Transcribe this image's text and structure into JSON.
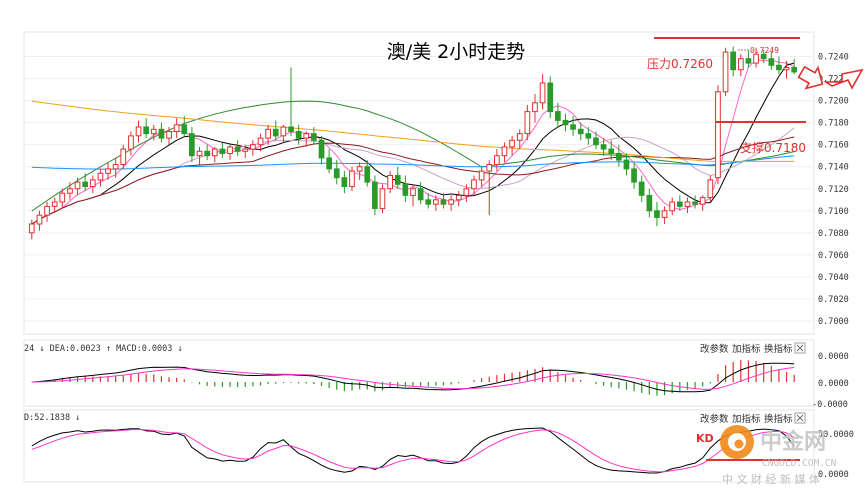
{
  "chart_data": {
    "type": "candlestick",
    "title": "澳/美 2小时走势",
    "ylim": [
      0.699,
      0.7255
    ],
    "y_ticks": [
      "0.7240",
      "0.7220",
      "0.7200",
      "0.7180",
      "0.7160",
      "0.7140",
      "0.7120",
      "0.7100",
      "0.7080",
      "0.7060",
      "0.7040",
      "0.7020",
      "0.7000"
    ],
    "annotations": {
      "resistance_label": "压力0.7260",
      "support_label": "支撑0.7180",
      "peak_label": "0.7249"
    },
    "candles": [
      {
        "o": 0.708,
        "h": 0.7092,
        "l": 0.7074,
        "c": 0.7088
      },
      {
        "o": 0.7088,
        "h": 0.71,
        "l": 0.7082,
        "c": 0.7096
      },
      {
        "o": 0.7096,
        "h": 0.7108,
        "l": 0.709,
        "c": 0.7104
      },
      {
        "o": 0.7104,
        "h": 0.7112,
        "l": 0.7098,
        "c": 0.7108
      },
      {
        "o": 0.7108,
        "h": 0.712,
        "l": 0.7102,
        "c": 0.7116
      },
      {
        "o": 0.7116,
        "h": 0.7126,
        "l": 0.711,
        "c": 0.712
      },
      {
        "o": 0.712,
        "h": 0.713,
        "l": 0.7114,
        "c": 0.7126
      },
      {
        "o": 0.7126,
        "h": 0.7134,
        "l": 0.7118,
        "c": 0.7122
      },
      {
        "o": 0.7122,
        "h": 0.7132,
        "l": 0.7116,
        "c": 0.7128
      },
      {
        "o": 0.7128,
        "h": 0.7138,
        "l": 0.7122,
        "c": 0.7134
      },
      {
        "o": 0.7134,
        "h": 0.7144,
        "l": 0.7128,
        "c": 0.7138
      },
      {
        "o": 0.7138,
        "h": 0.7148,
        "l": 0.713,
        "c": 0.7142
      },
      {
        "o": 0.7142,
        "h": 0.716,
        "l": 0.7138,
        "c": 0.7156
      },
      {
        "o": 0.7156,
        "h": 0.7172,
        "l": 0.715,
        "c": 0.7168
      },
      {
        "o": 0.7168,
        "h": 0.7182,
        "l": 0.7162,
        "c": 0.7176
      },
      {
        "o": 0.7176,
        "h": 0.7184,
        "l": 0.7166,
        "c": 0.717
      },
      {
        "o": 0.717,
        "h": 0.7178,
        "l": 0.7164,
        "c": 0.7174
      },
      {
        "o": 0.7174,
        "h": 0.718,
        "l": 0.7162,
        "c": 0.7166
      },
      {
        "o": 0.7166,
        "h": 0.7176,
        "l": 0.716,
        "c": 0.7172
      },
      {
        "o": 0.7172,
        "h": 0.7184,
        "l": 0.7166,
        "c": 0.7178
      },
      {
        "o": 0.7178,
        "h": 0.7186,
        "l": 0.7168,
        "c": 0.717
      },
      {
        "o": 0.717,
        "h": 0.7176,
        "l": 0.7144,
        "c": 0.715
      },
      {
        "o": 0.715,
        "h": 0.7158,
        "l": 0.7142,
        "c": 0.7154
      },
      {
        "o": 0.7154,
        "h": 0.716,
        "l": 0.7146,
        "c": 0.715
      },
      {
        "o": 0.715,
        "h": 0.7158,
        "l": 0.7144,
        "c": 0.7156
      },
      {
        "o": 0.7156,
        "h": 0.7162,
        "l": 0.7148,
        "c": 0.7152
      },
      {
        "o": 0.7152,
        "h": 0.716,
        "l": 0.7146,
        "c": 0.7158
      },
      {
        "o": 0.7158,
        "h": 0.7164,
        "l": 0.715,
        "c": 0.7154
      },
      {
        "o": 0.7154,
        "h": 0.716,
        "l": 0.7148,
        "c": 0.7156
      },
      {
        "o": 0.7156,
        "h": 0.7164,
        "l": 0.715,
        "c": 0.716
      },
      {
        "o": 0.716,
        "h": 0.717,
        "l": 0.7154,
        "c": 0.7166
      },
      {
        "o": 0.7166,
        "h": 0.7178,
        "l": 0.716,
        "c": 0.7174
      },
      {
        "o": 0.7174,
        "h": 0.7182,
        "l": 0.7164,
        "c": 0.7168
      },
      {
        "o": 0.7168,
        "h": 0.7178,
        "l": 0.7162,
        "c": 0.7176
      },
      {
        "o": 0.7176,
        "h": 0.723,
        "l": 0.7168,
        "c": 0.7172
      },
      {
        "o": 0.7172,
        "h": 0.7178,
        "l": 0.716,
        "c": 0.7166
      },
      {
        "o": 0.7166,
        "h": 0.7172,
        "l": 0.7158,
        "c": 0.717
      },
      {
        "o": 0.717,
        "h": 0.7176,
        "l": 0.716,
        "c": 0.7164
      },
      {
        "o": 0.7164,
        "h": 0.7168,
        "l": 0.7142,
        "c": 0.7148
      },
      {
        "o": 0.7148,
        "h": 0.7156,
        "l": 0.7134,
        "c": 0.7138
      },
      {
        "o": 0.7138,
        "h": 0.7146,
        "l": 0.7124,
        "c": 0.713
      },
      {
        "o": 0.713,
        "h": 0.7136,
        "l": 0.7116,
        "c": 0.7122
      },
      {
        "o": 0.7122,
        "h": 0.714,
        "l": 0.7118,
        "c": 0.7136
      },
      {
        "o": 0.7136,
        "h": 0.7144,
        "l": 0.7128,
        "c": 0.714
      },
      {
        "o": 0.714,
        "h": 0.7146,
        "l": 0.7122,
        "c": 0.7126
      },
      {
        "o": 0.7126,
        "h": 0.7132,
        "l": 0.7096,
        "c": 0.7102
      },
      {
        "o": 0.7102,
        "h": 0.7124,
        "l": 0.7098,
        "c": 0.712
      },
      {
        "o": 0.712,
        "h": 0.7136,
        "l": 0.7116,
        "c": 0.7132
      },
      {
        "o": 0.7132,
        "h": 0.714,
        "l": 0.712,
        "c": 0.7124
      },
      {
        "o": 0.7124,
        "h": 0.7132,
        "l": 0.7108,
        "c": 0.7114
      },
      {
        "o": 0.7114,
        "h": 0.7124,
        "l": 0.7104,
        "c": 0.712
      },
      {
        "o": 0.712,
        "h": 0.7126,
        "l": 0.7106,
        "c": 0.711
      },
      {
        "o": 0.711,
        "h": 0.7116,
        "l": 0.7102,
        "c": 0.7106
      },
      {
        "o": 0.7106,
        "h": 0.7114,
        "l": 0.71,
        "c": 0.711
      },
      {
        "o": 0.711,
        "h": 0.7116,
        "l": 0.7102,
        "c": 0.7106
      },
      {
        "o": 0.7106,
        "h": 0.7114,
        "l": 0.71,
        "c": 0.711
      },
      {
        "o": 0.711,
        "h": 0.7118,
        "l": 0.7104,
        "c": 0.7114
      },
      {
        "o": 0.7114,
        "h": 0.7124,
        "l": 0.7108,
        "c": 0.712
      },
      {
        "o": 0.712,
        "h": 0.7132,
        "l": 0.7114,
        "c": 0.7128
      },
      {
        "o": 0.7128,
        "h": 0.714,
        "l": 0.7122,
        "c": 0.7136
      },
      {
        "o": 0.7136,
        "h": 0.7146,
        "l": 0.7096,
        "c": 0.7142
      },
      {
        "o": 0.7142,
        "h": 0.7156,
        "l": 0.7136,
        "c": 0.715
      },
      {
        "o": 0.715,
        "h": 0.7162,
        "l": 0.7144,
        "c": 0.7158
      },
      {
        "o": 0.7158,
        "h": 0.7168,
        "l": 0.715,
        "c": 0.7164
      },
      {
        "o": 0.7164,
        "h": 0.7174,
        "l": 0.7156,
        "c": 0.717
      },
      {
        "o": 0.717,
        "h": 0.7196,
        "l": 0.7164,
        "c": 0.719
      },
      {
        "o": 0.719,
        "h": 0.7206,
        "l": 0.718,
        "c": 0.7198
      },
      {
        "o": 0.7198,
        "h": 0.7224,
        "l": 0.7192,
        "c": 0.7216
      },
      {
        "o": 0.7216,
        "h": 0.7222,
        "l": 0.7184,
        "c": 0.719
      },
      {
        "o": 0.719,
        "h": 0.7198,
        "l": 0.7176,
        "c": 0.7182
      },
      {
        "o": 0.7182,
        "h": 0.7188,
        "l": 0.7172,
        "c": 0.7178
      },
      {
        "o": 0.7178,
        "h": 0.7186,
        "l": 0.7168,
        "c": 0.7174
      },
      {
        "o": 0.7174,
        "h": 0.718,
        "l": 0.7164,
        "c": 0.717
      },
      {
        "o": 0.717,
        "h": 0.7176,
        "l": 0.716,
        "c": 0.7166
      },
      {
        "o": 0.7166,
        "h": 0.7172,
        "l": 0.7156,
        "c": 0.716
      },
      {
        "o": 0.716,
        "h": 0.7166,
        "l": 0.715,
        "c": 0.7156
      },
      {
        "o": 0.7156,
        "h": 0.7164,
        "l": 0.7146,
        "c": 0.7152
      },
      {
        "o": 0.7152,
        "h": 0.716,
        "l": 0.714,
        "c": 0.7146
      },
      {
        "o": 0.7146,
        "h": 0.7152,
        "l": 0.7132,
        "c": 0.7138
      },
      {
        "o": 0.7138,
        "h": 0.7144,
        "l": 0.712,
        "c": 0.7126
      },
      {
        "o": 0.7126,
        "h": 0.7132,
        "l": 0.7108,
        "c": 0.7114
      },
      {
        "o": 0.7114,
        "h": 0.712,
        "l": 0.7094,
        "c": 0.71
      },
      {
        "o": 0.71,
        "h": 0.7108,
        "l": 0.7086,
        "c": 0.7094
      },
      {
        "o": 0.7094,
        "h": 0.7104,
        "l": 0.7088,
        "c": 0.71
      },
      {
        "o": 0.71,
        "h": 0.7112,
        "l": 0.7096,
        "c": 0.7108
      },
      {
        "o": 0.7108,
        "h": 0.7114,
        "l": 0.71,
        "c": 0.7104
      },
      {
        "o": 0.7104,
        "h": 0.7112,
        "l": 0.7098,
        "c": 0.7108
      },
      {
        "o": 0.7108,
        "h": 0.7114,
        "l": 0.7102,
        "c": 0.7106
      },
      {
        "o": 0.7106,
        "h": 0.7114,
        "l": 0.71,
        "c": 0.7112
      },
      {
        "o": 0.7112,
        "h": 0.7132,
        "l": 0.7108,
        "c": 0.7128
      },
      {
        "o": 0.713,
        "h": 0.7214,
        "l": 0.7124,
        "c": 0.7208
      },
      {
        "o": 0.7208,
        "h": 0.7248,
        "l": 0.7204,
        "c": 0.7244
      },
      {
        "o": 0.7244,
        "h": 0.7249,
        "l": 0.7222,
        "c": 0.7228
      },
      {
        "o": 0.7228,
        "h": 0.7242,
        "l": 0.7222,
        "c": 0.7238
      },
      {
        "o": 0.7238,
        "h": 0.7246,
        "l": 0.723,
        "c": 0.7234
      },
      {
        "o": 0.7234,
        "h": 0.7248,
        "l": 0.723,
        "c": 0.7242
      },
      {
        "o": 0.7242,
        "h": 0.7246,
        "l": 0.7234,
        "c": 0.7238
      },
      {
        "o": 0.7238,
        "h": 0.7244,
        "l": 0.7228,
        "c": 0.7232
      },
      {
        "o": 0.7232,
        "h": 0.724,
        "l": 0.7224,
        "c": 0.7228
      },
      {
        "o": 0.7228,
        "h": 0.7236,
        "l": 0.722,
        "c": 0.723
      },
      {
        "o": 0.723,
        "h": 0.7238,
        "l": 0.7224,
        "c": 0.7226
      }
    ],
    "moving_averages": [
      {
        "color": "#ff66cc",
        "period": 5
      },
      {
        "color": "#000000",
        "period": 10
      },
      {
        "color": "#c8a0c8",
        "period": 20
      },
      {
        "color": "#8b1a1a",
        "period": 30
      },
      {
        "color": "#2e8b2e",
        "period": 60
      },
      {
        "color": "#1e90ff",
        "period": 120
      },
      {
        "color": "#f0a020",
        "period": 250
      }
    ],
    "macd": {
      "header": "24 ↓ DEA:0.0023 ↑ MACD:0.0003 ↓",
      "y_ticks": [
        "0.0000",
        "0.0000",
        "-0.0000"
      ],
      "positive_color": "#e03030",
      "negative_color": "#2a9a2a",
      "dif_color": "#000000",
      "dea_color": "#ff33cc"
    },
    "kdj": {
      "header": "D:52.1838 ↓",
      "y_ticks": [
        "50.0000",
        "0.0000"
      ],
      "k_color": "#000000",
      "d_color": "#ff33cc"
    },
    "panel_buttons": [
      "改参数",
      "加指标",
      "换指标"
    ],
    "watermark": {
      "brand": "中金网",
      "url": "CNGOLD.COM.CN",
      "tagline": "中 文 财 经 新 媒 体"
    },
    "colors": {
      "up": "#e03030",
      "down": "#2a9a2a",
      "annotation": "#e03030",
      "support_text": "#e03030",
      "axis_text": "#333333"
    }
  }
}
